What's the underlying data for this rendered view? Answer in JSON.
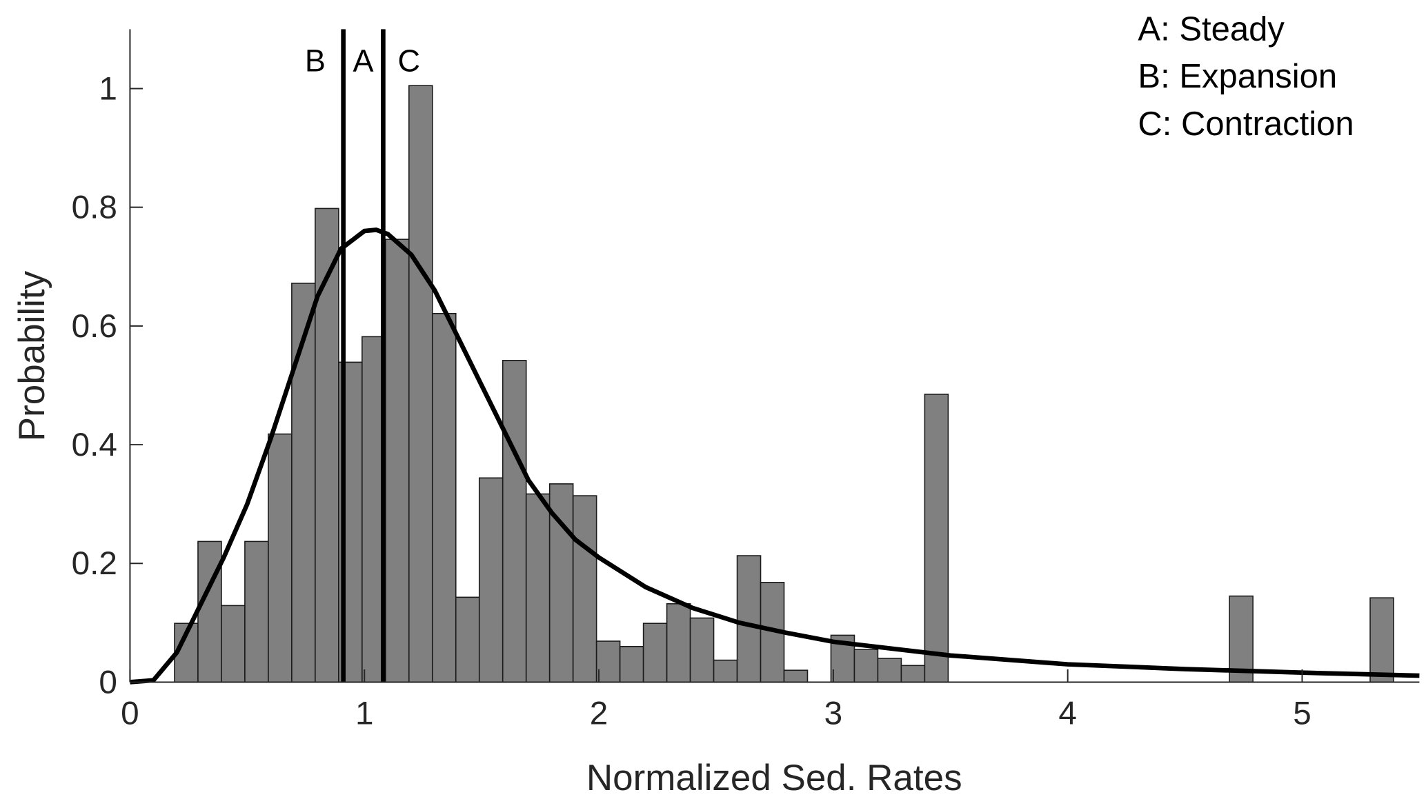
{
  "chart_data": {
    "type": "bar",
    "title": "",
    "xlabel": "Normalized Sed. Rates",
    "ylabel": "Probability",
    "xlim": [
      0,
      5.5
    ],
    "ylim": [
      0,
      1.1
    ],
    "xticks": [
      "0",
      "1",
      "2",
      "3",
      "4",
      "5"
    ],
    "yticks": [
      "0",
      "0.2",
      "0.4",
      "0.6",
      "0.8",
      "1"
    ],
    "grid": false,
    "bar_color": "#808080",
    "histogram": {
      "bin_width": 0.1,
      "bin_left_edges": [
        0.19,
        0.29,
        0.39,
        0.49,
        0.59,
        0.69,
        0.79,
        0.89,
        0.99,
        1.09,
        1.19,
        1.29,
        1.39,
        1.49,
        1.59,
        1.69,
        1.79,
        1.89,
        1.99,
        2.09,
        2.19,
        2.29,
        2.39,
        2.49,
        2.59,
        2.69,
        2.79,
        2.99,
        3.09,
        3.19,
        3.29,
        3.39,
        4.69,
        5.29
      ],
      "values": [
        0.099,
        0.237,
        0.129,
        0.237,
        0.418,
        0.672,
        0.798,
        0.539,
        0.582,
        0.746,
        1.005,
        0.621,
        0.143,
        0.344,
        0.542,
        0.317,
        0.334,
        0.314,
        0.069,
        0.06,
        0.099,
        0.132,
        0.108,
        0.037,
        0.213,
        0.168,
        0.02,
        0.079,
        0.055,
        0.04,
        0.028,
        0.485,
        0.145,
        0.142
      ]
    },
    "fit_curve": {
      "x": [
        0,
        0.1,
        0.2,
        0.3,
        0.4,
        0.5,
        0.6,
        0.7,
        0.8,
        0.9,
        1.0,
        1.05,
        1.1,
        1.2,
        1.3,
        1.4,
        1.5,
        1.6,
        1.7,
        1.8,
        1.9,
        2.0,
        2.2,
        2.4,
        2.6,
        2.8,
        3.0,
        3.5,
        4.0,
        4.5,
        5.0,
        5.5
      ],
      "y": [
        0,
        0.003,
        0.05,
        0.13,
        0.21,
        0.3,
        0.41,
        0.53,
        0.65,
        0.73,
        0.76,
        0.762,
        0.755,
        0.72,
        0.66,
        0.58,
        0.5,
        0.42,
        0.34,
        0.285,
        0.24,
        0.21,
        0.16,
        0.125,
        0.1,
        0.083,
        0.068,
        0.045,
        0.03,
        0.022,
        0.016,
        0.011
      ]
    },
    "vertical_lines": [
      {
        "x": 0.91,
        "label": "B"
      },
      {
        "x": 1.08,
        "label": "C"
      }
    ],
    "marker_labels": [
      {
        "x": 0.79,
        "text": "B"
      },
      {
        "x": 0.995,
        "text": "A"
      },
      {
        "x": 1.19,
        "text": "C"
      }
    ],
    "legend": {
      "position": "top-right",
      "entries": [
        "A: Steady",
        "B: Expansion",
        "C: Contraction"
      ]
    }
  }
}
